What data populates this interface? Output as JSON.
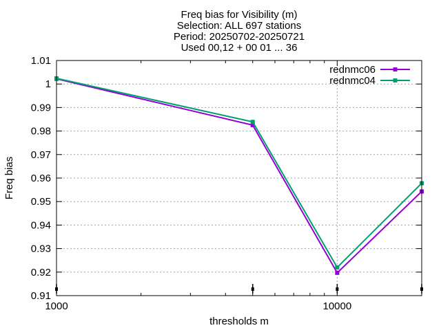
{
  "chart_data": {
    "type": "line",
    "title_lines": [
      "Freq bias  for Visibility (m)",
      "Selection: ALL    697 stations",
      "Period: 20250702-20250721",
      "Used 00,12 + 00 01 ... 36"
    ],
    "xlabel": "thresholds m",
    "ylabel": "Freq bias",
    "x_scale": "log",
    "xlim": [
      1000,
      20000
    ],
    "ylim": [
      0.91,
      1.01
    ],
    "y_ticks": [
      0.91,
      0.92,
      0.93,
      0.94,
      0.95,
      0.96,
      0.97,
      0.98,
      0.99,
      1.0,
      1.01
    ],
    "y_tick_labels": [
      "0.91",
      "0.92",
      "0.93",
      "0.94",
      "0.95",
      "0.96",
      "0.97",
      "0.98",
      "0.99",
      "1",
      "1.01"
    ],
    "x_major_ticks": [
      1000,
      10000
    ],
    "x_tick_labels": [
      "1000",
      "10000"
    ],
    "grid": true,
    "legend_position": "top-right",
    "x": [
      1000,
      5000,
      10000,
      20000
    ],
    "series": [
      {
        "name": "rednmc06",
        "color": "#9400d3",
        "values": [
          1.0022,
          0.9825,
          0.9197,
          0.9543
        ]
      },
      {
        "name": "rednmc04",
        "color": "#009e73",
        "values": [
          1.0024,
          0.9839,
          0.922,
          0.9578
        ]
      }
    ],
    "sample_count_markers_x": [
      1000,
      5000,
      10000,
      20000
    ]
  }
}
